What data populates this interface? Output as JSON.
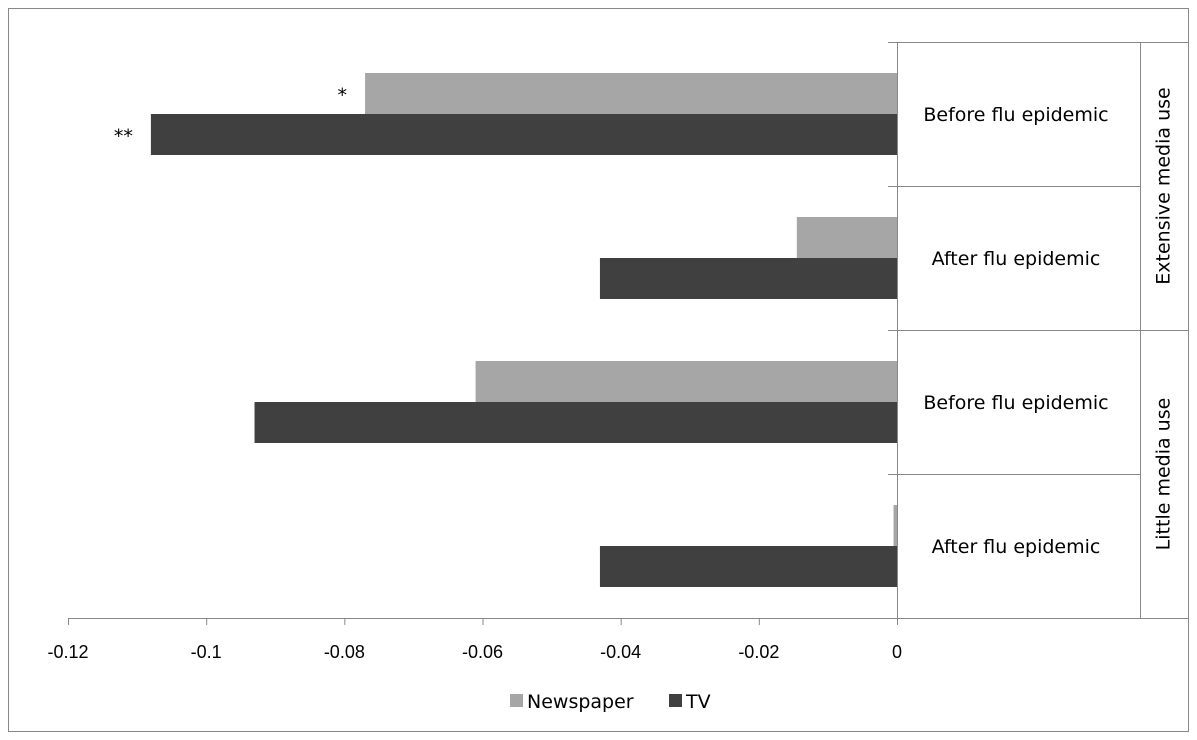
{
  "chart_data": {
    "type": "bar",
    "orientation": "horizontal",
    "title": "",
    "xlabel": "",
    "ylabel": "",
    "xlim": [
      -0.12,
      0
    ],
    "x_ticks": [
      -0.12,
      -0.1,
      -0.08,
      -0.06,
      -0.04,
      -0.02,
      0
    ],
    "x_tick_labels": [
      "-0.12",
      "-0.1",
      "-0.08",
      "-0.06",
      "-0.04",
      "-0.02",
      "0"
    ],
    "grid": false,
    "legend_position": "bottom",
    "groups": [
      {
        "label": "Extensive media use",
        "categories": [
          "Before flu epidemic",
          "After flu epidemic"
        ]
      },
      {
        "label": "Little media use",
        "categories": [
          "Before flu epidemic",
          "After flu epidemic"
        ]
      }
    ],
    "categories": [
      "Before flu epidemic",
      "After flu epidemic",
      "Before flu epidemic",
      "After flu epidemic"
    ],
    "series": [
      {
        "name": "Newspaper",
        "color": "#a6a6a6",
        "values": [
          -0.077,
          -0.0145,
          -0.061,
          -0.0005
        ],
        "annotations": [
          "*",
          "",
          "",
          ""
        ]
      },
      {
        "name": "TV",
        "color": "#404040",
        "values": [
          -0.108,
          -0.043,
          -0.093,
          -0.043
        ],
        "annotations": [
          "**",
          "",
          "",
          ""
        ]
      }
    ]
  }
}
